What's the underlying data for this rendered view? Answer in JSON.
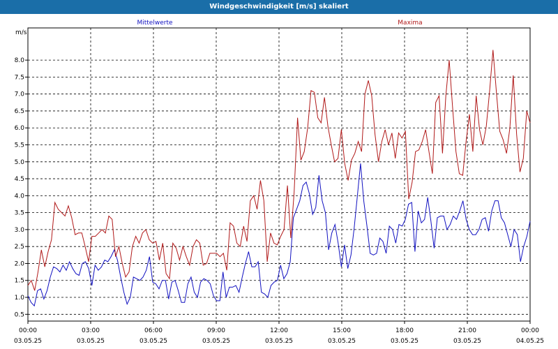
{
  "window": {
    "title": "Windgeschwindigkeit [m/s] skaliert"
  },
  "chart_data": {
    "type": "line",
    "title": "Windgeschwindigkeit [m/s] skaliert",
    "ylabel": "m/s",
    "ylim": [
      0.3,
      8.95
    ],
    "yticks": [
      "0.5",
      "1.0",
      "1.5",
      "2.0",
      "2.5",
      "3.0",
      "3.5",
      "4.0",
      "4.5",
      "5.0",
      "5.5",
      "6.0",
      "6.5",
      "7.0",
      "7.5",
      "8.0"
    ],
    "xticks": [
      {
        "time": "00:00",
        "date": "03.05.25"
      },
      {
        "time": "03:00",
        "date": "03.05.25"
      },
      {
        "time": "06:00",
        "date": "03.05.25"
      },
      {
        "time": "09:00",
        "date": "03.05.25"
      },
      {
        "time": "12:00",
        "date": "03.05.25"
      },
      {
        "time": "15:00",
        "date": "03.05.25"
      },
      {
        "time": "18:00",
        "date": "03.05.25"
      },
      {
        "time": "21:00",
        "date": "03.05.25"
      },
      {
        "time": "00:00",
        "date": "04.05.25"
      }
    ],
    "xlim_hours": [
      0,
      24
    ],
    "grid": true,
    "series": [
      {
        "name": "Mittelwerte",
        "color": "#1010c0",
        "x_step_hours": 0.1667,
        "values": [
          1.05,
          0.85,
          0.75,
          1.2,
          1.25,
          0.95,
          1.2,
          1.6,
          1.9,
          1.85,
          1.75,
          1.95,
          1.8,
          2.05,
          1.85,
          1.7,
          1.65,
          2.0,
          2.05,
          1.85,
          1.35,
          1.95,
          1.8,
          1.9,
          2.1,
          2.05,
          2.2,
          2.4,
          2.1,
          1.6,
          1.15,
          0.8,
          1.0,
          1.6,
          1.55,
          1.5,
          1.6,
          1.8,
          2.2,
          1.45,
          1.4,
          1.25,
          1.5,
          1.5,
          0.95,
          1.45,
          1.5,
          1.2,
          0.85,
          0.85,
          1.4,
          1.6,
          1.15,
          1.0,
          1.45,
          1.55,
          1.5,
          1.4,
          1.05,
          0.9,
          0.9,
          1.75,
          1.0,
          1.3,
          1.3,
          1.35,
          1.15,
          1.6,
          2.0,
          2.35,
          1.9,
          1.9,
          2.05,
          1.15,
          1.1,
          1.0,
          1.35,
          1.45,
          1.5,
          1.95,
          1.55,
          1.7,
          2.05,
          3.35,
          3.6,
          3.85,
          4.3,
          4.4,
          4.05,
          3.45,
          3.65,
          4.6,
          3.85,
          3.5,
          2.4,
          2.9,
          3.15,
          2.6,
          1.9,
          2.55,
          1.85,
          2.25,
          3.05,
          4.0,
          4.95,
          3.85,
          3.1,
          2.3,
          2.25,
          2.3,
          2.75,
          2.65,
          2.3,
          3.1,
          3.0,
          2.6,
          3.15,
          3.1,
          3.3,
          3.75,
          3.8,
          2.35,
          3.55,
          3.2,
          3.3,
          3.95,
          3.25,
          2.45,
          3.35,
          3.4,
          3.4,
          3.0,
          3.15,
          3.4,
          3.3,
          3.55,
          3.85,
          3.3,
          3.0,
          2.85,
          2.85,
          3.0,
          3.3,
          3.35,
          2.95,
          3.55,
          3.85,
          3.85,
          3.35,
          3.2,
          2.85,
          2.5,
          3.0,
          2.85,
          2.05,
          2.5,
          2.8,
          3.25
        ]
      },
      {
        "name": "Maxima",
        "color": "#b01818",
        "x_step_hours": 0.1667,
        "values": [
          1.35,
          1.5,
          1.2,
          1.75,
          2.4,
          1.9,
          2.35,
          2.7,
          3.8,
          3.6,
          3.5,
          3.4,
          3.7,
          3.35,
          2.85,
          2.9,
          2.9,
          2.5,
          2.05,
          2.8,
          2.8,
          2.9,
          3.0,
          2.9,
          3.4,
          3.3,
          2.2,
          2.5,
          2.0,
          1.6,
          1.75,
          2.5,
          2.8,
          2.6,
          2.9,
          3.0,
          2.7,
          2.6,
          2.65,
          2.1,
          2.6,
          1.7,
          1.55,
          2.6,
          2.45,
          2.1,
          2.5,
          2.2,
          1.95,
          2.5,
          2.7,
          2.6,
          1.95,
          2.0,
          2.3,
          2.3,
          2.3,
          2.2,
          2.3,
          1.8,
          3.2,
          3.1,
          2.6,
          2.5,
          3.1,
          2.65,
          3.85,
          4.0,
          3.6,
          4.45,
          3.85,
          2.05,
          2.9,
          2.6,
          2.55,
          2.8,
          3.0,
          4.3,
          2.75,
          4.1,
          6.3,
          5.05,
          5.3,
          6.0,
          7.1,
          7.05,
          6.3,
          6.15,
          6.9,
          6.05,
          5.5,
          5.0,
          5.1,
          5.95,
          4.95,
          4.45,
          5.05,
          5.25,
          5.6,
          5.3,
          7.0,
          7.4,
          6.95,
          5.8,
          5.0,
          5.6,
          5.95,
          5.5,
          5.85,
          5.1,
          5.85,
          5.7,
          5.9,
          3.9,
          4.4,
          5.3,
          5.35,
          5.6,
          5.95,
          5.3,
          4.65,
          6.75,
          6.95,
          5.25,
          6.95,
          8.0,
          6.6,
          5.3,
          4.65,
          4.6,
          5.6,
          6.4,
          5.3,
          6.95,
          5.95,
          5.5,
          6.05,
          7.1,
          8.3,
          7.05,
          5.9,
          5.65,
          5.25,
          6.0,
          7.55,
          5.8,
          4.7,
          5.1,
          6.5,
          6.15
        ]
      }
    ]
  }
}
